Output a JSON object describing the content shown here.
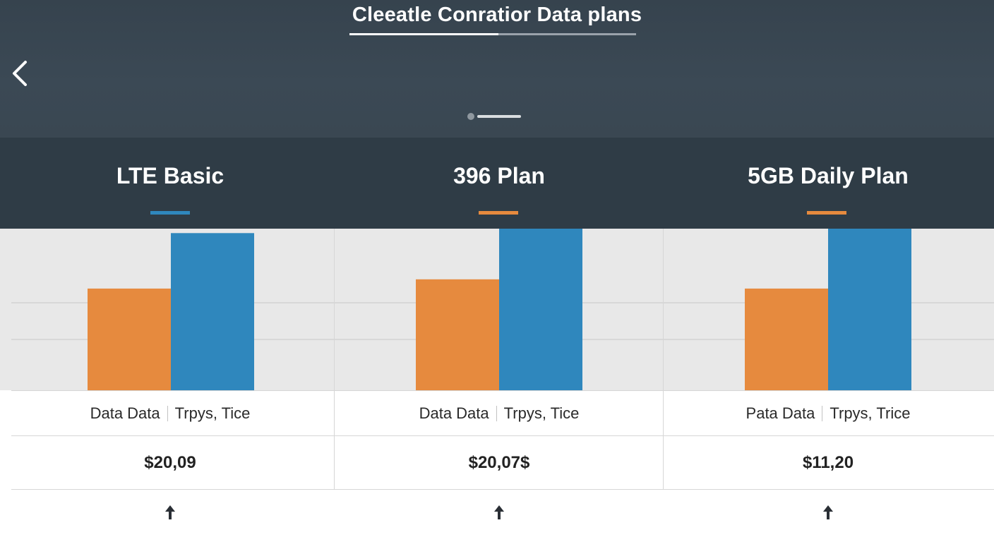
{
  "app": {
    "title": "Cleeatle Conratior Data plans",
    "title_progress": 0.52,
    "page_indicator": {
      "current": 1
    }
  },
  "icons": {
    "back": "chevron-left-icon",
    "expand": "arrow-up-icon"
  },
  "colors": {
    "topbar": "#3a4752",
    "plan_header": "#2f3c46",
    "orange": "#e68a3e",
    "blue": "#2f87bd"
  },
  "plans": [
    {
      "name": "LTE Basic",
      "accent": "#2f87bd",
      "label_left": "Data Data",
      "label_right": "Trpys, Tice",
      "price": "$20,09"
    },
    {
      "name": "396 Plan",
      "accent": "#e68a3e",
      "label_left": "Data Data",
      "label_right": "Trpys, Tice",
      "price": "$20,07$"
    },
    {
      "name": "5GB Daily Plan",
      "accent": "#e68a3e",
      "label_left": "Pata Data",
      "label_right": "Trpys, Trice",
      "price": "$11,20"
    }
  ],
  "chart_data": {
    "type": "bar",
    "categories": [
      "LTE Basic",
      "396 Plan",
      "5GB Daily Plan"
    ],
    "series": [
      {
        "values": [
          55,
          60,
          55
        ],
        "color": "#e68a3e"
      },
      {
        "values": [
          85,
          89,
          90
        ],
        "color": "#2f87bd"
      }
    ],
    "ylim": [
      0,
      100
    ],
    "grid": true
  }
}
